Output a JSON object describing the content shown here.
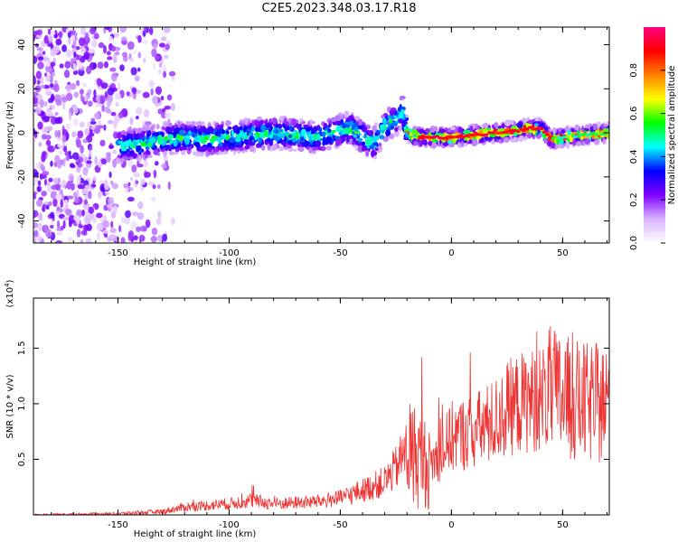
{
  "title": "C2E5.2023.348.03.17.R18",
  "chart_data": [
    {
      "type": "heatmap",
      "xlabel": "Height of straight line (km)",
      "ylabel": "Frequency (Hz)",
      "xlim": [
        -188,
        71
      ],
      "ylim": [
        -50,
        48
      ],
      "xticks": [
        -150,
        -100,
        -50,
        0,
        50
      ],
      "yticks": [
        -40,
        -20,
        0,
        20,
        40
      ],
      "colorbar": {
        "label": "Normalized spectral amplitude",
        "range": [
          0.0,
          1.0
        ],
        "ticks": [
          "0.0",
          "0.2",
          "0.4",
          "0.6",
          "0.8"
        ],
        "colors": [
          "#ffffff",
          "#d9b3ff",
          "#7f00ff",
          "#0000ff",
          "#00ffff",
          "#00ff00",
          "#ffff00",
          "#ff8000",
          "#ff0000",
          "#ff0080"
        ]
      },
      "ridge": {
        "x": [
          -148,
          -140,
          -130,
          -120,
          -110,
          -100,
          -90,
          -80,
          -70,
          -60,
          -50,
          -45,
          -40,
          -35,
          -30,
          -25,
          -22,
          -20,
          -15,
          -10,
          0,
          10,
          20,
          30,
          35,
          40,
          45,
          50,
          60,
          70
        ],
        "y": [
          -6,
          -5,
          -3,
          -2,
          -3,
          -2,
          -1,
          0,
          -1,
          -2,
          1,
          2,
          -2,
          -5,
          3,
          6,
          10,
          0,
          -2,
          -2,
          -2,
          -1,
          0,
          1,
          2,
          2,
          -3,
          -2,
          -1,
          0
        ]
      }
    },
    {
      "type": "line",
      "xlabel": "Height of straight line (km)",
      "ylabel": "SNR (10 * v/v)",
      "multiplier": "(x10",
      "multiplier_exp": "4",
      "multiplier_close": ")",
      "xlim": [
        -188,
        71
      ],
      "ylim": [
        0,
        1.95
      ],
      "xticks": [
        -150,
        -100,
        -50,
        0,
        50
      ],
      "yticks": [
        "0.5",
        "1.0",
        "1.5"
      ],
      "series": [
        {
          "color": "#ee3333",
          "trend_x": [
            -188,
            -150,
            -130,
            -120,
            -100,
            -90,
            -80,
            -60,
            -50,
            -40,
            -30,
            -25,
            -20,
            -15,
            -10,
            -5,
            0,
            10,
            20,
            25,
            30,
            40,
            45,
            50,
            60,
            71
          ],
          "trend_y": [
            0.0,
            0.01,
            0.03,
            0.07,
            0.1,
            0.13,
            0.1,
            0.12,
            0.15,
            0.22,
            0.3,
            0.42,
            0.6,
            0.5,
            0.45,
            0.55,
            0.7,
            0.75,
            0.85,
            0.95,
            1.0,
            1.05,
            1.1,
            1.05,
            1.0,
            1.0
          ]
        }
      ]
    }
  ]
}
